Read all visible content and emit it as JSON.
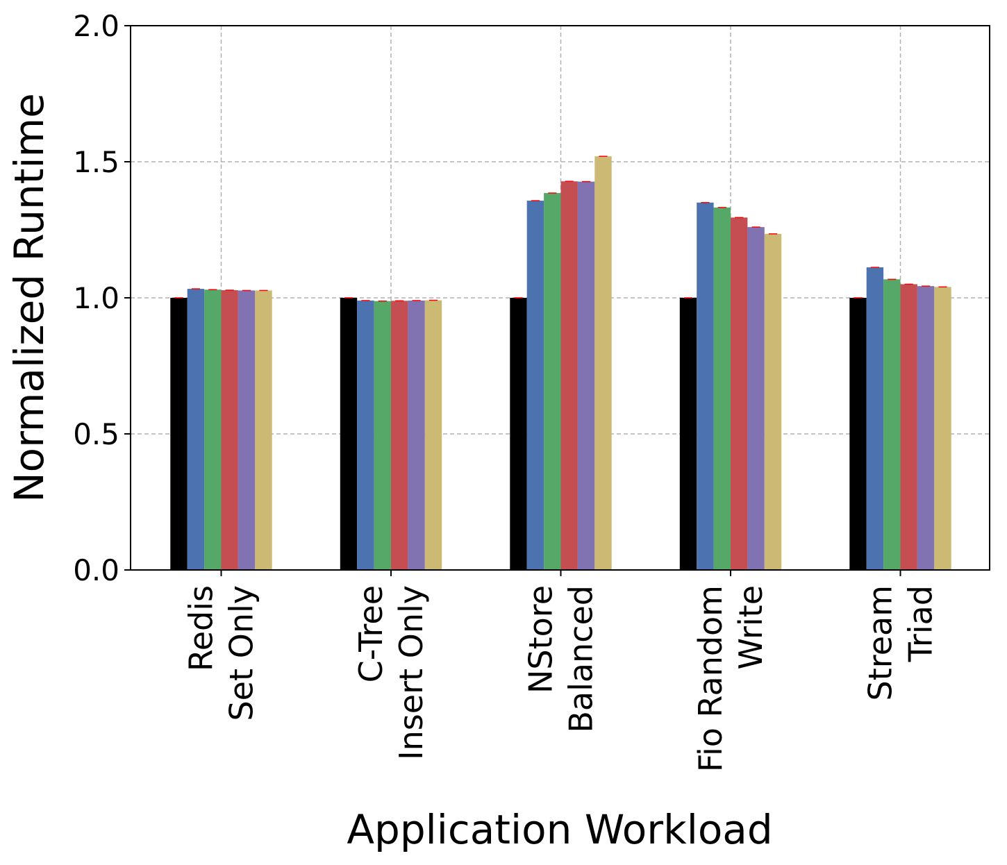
{
  "chart_data": {
    "type": "bar",
    "xlabel": "Application Workload",
    "ylabel": "Normalized Runtime",
    "ylim": [
      0,
      2.0
    ],
    "yticks": [
      "0.0",
      "0.5",
      "1.0",
      "1.5",
      "2.0"
    ],
    "ytick_values": [
      0,
      0.5,
      1.0,
      1.5,
      2.0
    ],
    "grid": true,
    "categories": [
      [
        "Redis",
        "Set Only"
      ],
      [
        "C-Tree",
        "Insert Only"
      ],
      [
        "NStore",
        "Balanced"
      ],
      [
        "Fio Random",
        "Write"
      ],
      [
        "Stream",
        "Triad"
      ]
    ],
    "series": [
      {
        "color": "#000000",
        "values": [
          1.0,
          1.0,
          1.0,
          1.0,
          1.0
        ]
      },
      {
        "color": "#4c72b0",
        "values": [
          1.033,
          0.99,
          1.357,
          1.35,
          1.112
        ]
      },
      {
        "color": "#55a868",
        "values": [
          1.03,
          0.988,
          1.385,
          1.332,
          1.068
        ]
      },
      {
        "color": "#c44e52",
        "values": [
          1.028,
          0.989,
          1.428,
          1.295,
          1.05
        ]
      },
      {
        "color": "#8172b2",
        "values": [
          1.027,
          0.99,
          1.427,
          1.26,
          1.043
        ]
      },
      {
        "color": "#ccb974",
        "values": [
          1.027,
          0.991,
          1.52,
          1.235,
          1.04
        ]
      }
    ],
    "error_color": "#ff0000"
  }
}
